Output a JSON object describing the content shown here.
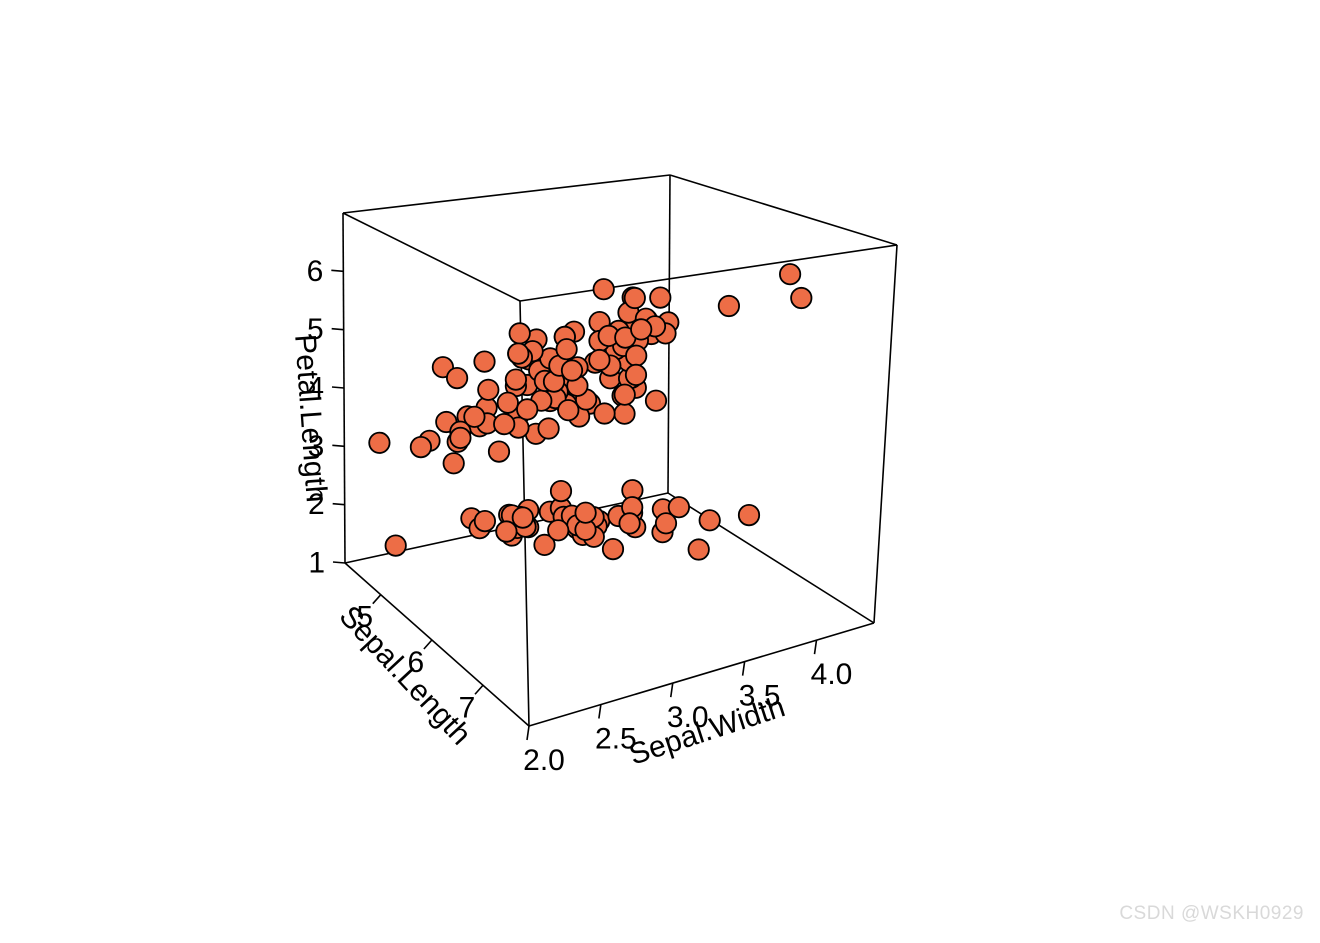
{
  "watermark": "CSDN @WSKH0929",
  "chart_data": {
    "type": "scatter",
    "subtype": "scatter3d",
    "title": "",
    "xlabel": "Sepal.Length",
    "ylabel": "Sepal.Width",
    "zlabel": "Petal.Length",
    "xlim": [
      4.3,
      7.9
    ],
    "ylim": [
      2.0,
      4.4
    ],
    "zlim": [
      1.0,
      7.0
    ],
    "xticks": {
      "values": [
        5,
        6,
        7
      ],
      "labels": [
        "5",
        "6",
        "7"
      ]
    },
    "yticks": {
      "values": [
        2.0,
        2.5,
        3.0,
        3.5,
        4.0
      ],
      "labels": [
        "2.0",
        "2.5",
        "3.0",
        "3.5",
        "4.0"
      ]
    },
    "zticks": {
      "values": [
        1,
        2,
        3,
        4,
        5,
        6
      ],
      "labels": [
        "1",
        "2",
        "3",
        "4",
        "5",
        "6"
      ]
    },
    "grid": false,
    "legend": false,
    "point_color": "#ED6D46",
    "point_border_color": "#000000",
    "points": [
      [
        5.1,
        3.5,
        1.4
      ],
      [
        4.9,
        3.0,
        1.4
      ],
      [
        4.7,
        3.2,
        1.3
      ],
      [
        4.6,
        3.1,
        1.5
      ],
      [
        5.0,
        3.6,
        1.4
      ],
      [
        5.4,
        3.9,
        1.7
      ],
      [
        4.6,
        3.4,
        1.4
      ],
      [
        5.0,
        3.4,
        1.5
      ],
      [
        4.4,
        2.9,
        1.4
      ],
      [
        4.9,
        3.1,
        1.5
      ],
      [
        5.4,
        3.7,
        1.5
      ],
      [
        4.8,
        3.4,
        1.6
      ],
      [
        4.8,
        3.0,
        1.4
      ],
      [
        4.3,
        3.0,
        1.1
      ],
      [
        5.8,
        4.0,
        1.2
      ],
      [
        5.7,
        4.4,
        1.5
      ],
      [
        5.4,
        3.9,
        1.3
      ],
      [
        5.1,
        3.5,
        1.4
      ],
      [
        5.7,
        3.8,
        1.7
      ],
      [
        5.1,
        3.8,
        1.5
      ],
      [
        5.4,
        3.4,
        1.7
      ],
      [
        5.1,
        3.7,
        1.5
      ],
      [
        4.6,
        3.6,
        1.0
      ],
      [
        5.1,
        3.3,
        1.7
      ],
      [
        4.8,
        3.4,
        1.9
      ],
      [
        5.0,
        3.0,
        1.6
      ],
      [
        5.0,
        3.4,
        1.6
      ],
      [
        5.2,
        3.5,
        1.5
      ],
      [
        5.2,
        3.4,
        1.4
      ],
      [
        4.7,
        3.2,
        1.6
      ],
      [
        4.8,
        3.1,
        1.6
      ],
      [
        5.4,
        3.4,
        1.5
      ],
      [
        5.2,
        4.1,
        1.5
      ],
      [
        5.5,
        4.2,
        1.4
      ],
      [
        4.9,
        3.1,
        1.5
      ],
      [
        5.0,
        3.2,
        1.2
      ],
      [
        5.5,
        3.5,
        1.3
      ],
      [
        4.9,
        3.6,
        1.4
      ],
      [
        4.4,
        3.0,
        1.3
      ],
      [
        5.1,
        3.4,
        1.5
      ],
      [
        5.0,
        3.5,
        1.3
      ],
      [
        4.5,
        2.3,
        1.3
      ],
      [
        4.4,
        3.2,
        1.3
      ],
      [
        5.0,
        3.5,
        1.6
      ],
      [
        5.1,
        3.8,
        1.9
      ],
      [
        4.8,
        3.0,
        1.4
      ],
      [
        5.1,
        3.8,
        1.6
      ],
      [
        4.6,
        3.2,
        1.4
      ],
      [
        5.3,
        3.7,
        1.5
      ],
      [
        5.0,
        3.3,
        1.4
      ],
      [
        7.0,
        3.2,
        4.7
      ],
      [
        6.4,
        3.2,
        4.5
      ],
      [
        6.9,
        3.1,
        4.9
      ],
      [
        5.5,
        2.3,
        4.0
      ],
      [
        6.5,
        2.8,
        4.6
      ],
      [
        5.7,
        2.8,
        4.5
      ],
      [
        6.3,
        3.3,
        4.7
      ],
      [
        4.9,
        2.4,
        3.3
      ],
      [
        6.6,
        2.9,
        4.6
      ],
      [
        5.2,
        2.7,
        3.9
      ],
      [
        5.0,
        2.0,
        3.5
      ],
      [
        5.9,
        3.0,
        4.2
      ],
      [
        6.0,
        2.2,
        4.0
      ],
      [
        6.1,
        2.9,
        4.7
      ],
      [
        5.6,
        2.9,
        3.6
      ],
      [
        6.7,
        3.1,
        4.4
      ],
      [
        5.6,
        3.0,
        4.5
      ],
      [
        5.8,
        2.7,
        4.1
      ],
      [
        6.2,
        2.2,
        4.5
      ],
      [
        5.6,
        2.5,
        3.9
      ],
      [
        5.9,
        3.2,
        4.8
      ],
      [
        6.1,
        2.8,
        4.0
      ],
      [
        6.3,
        2.5,
        4.9
      ],
      [
        6.1,
        2.8,
        4.7
      ],
      [
        6.4,
        2.9,
        4.3
      ],
      [
        6.6,
        3.0,
        4.4
      ],
      [
        6.8,
        2.8,
        4.8
      ],
      [
        6.7,
        3.0,
        5.0
      ],
      [
        6.0,
        2.9,
        4.5
      ],
      [
        5.7,
        2.6,
        3.5
      ],
      [
        5.5,
        2.4,
        3.8
      ],
      [
        5.5,
        2.4,
        3.7
      ],
      [
        5.8,
        2.7,
        3.9
      ],
      [
        6.0,
        2.7,
        5.1
      ],
      [
        5.4,
        3.0,
        4.5
      ],
      [
        6.0,
        3.4,
        4.5
      ],
      [
        6.7,
        3.1,
        4.7
      ],
      [
        6.3,
        2.3,
        4.4
      ],
      [
        5.6,
        3.0,
        4.1
      ],
      [
        5.5,
        2.5,
        4.0
      ],
      [
        5.5,
        2.6,
        4.4
      ],
      [
        6.1,
        3.0,
        4.6
      ],
      [
        5.8,
        2.6,
        4.0
      ],
      [
        5.0,
        2.3,
        3.3
      ],
      [
        5.6,
        2.7,
        4.2
      ],
      [
        5.7,
        3.0,
        4.2
      ],
      [
        5.7,
        2.9,
        4.2
      ],
      [
        6.2,
        2.9,
        4.3
      ],
      [
        5.1,
        2.5,
        3.0
      ],
      [
        5.7,
        2.8,
        4.1
      ],
      [
        6.3,
        3.3,
        6.0
      ],
      [
        5.8,
        2.7,
        5.1
      ],
      [
        7.1,
        3.0,
        5.9
      ],
      [
        6.3,
        2.9,
        5.6
      ],
      [
        6.5,
        3.0,
        5.8
      ],
      [
        7.6,
        3.0,
        6.6
      ],
      [
        4.9,
        2.5,
        4.5
      ],
      [
        7.3,
        2.9,
        6.3
      ],
      [
        6.7,
        2.5,
        5.8
      ],
      [
        7.2,
        3.6,
        6.1
      ],
      [
        6.5,
        3.2,
        5.1
      ],
      [
        6.4,
        2.7,
        5.3
      ],
      [
        6.8,
        3.0,
        5.5
      ],
      [
        5.7,
        2.5,
        5.0
      ],
      [
        5.8,
        2.8,
        5.1
      ],
      [
        6.4,
        3.2,
        5.3
      ],
      [
        6.5,
        3.0,
        5.5
      ],
      [
        7.7,
        3.8,
        6.7
      ],
      [
        7.7,
        2.6,
        6.9
      ],
      [
        6.0,
        2.2,
        5.0
      ],
      [
        6.9,
        3.2,
        5.7
      ],
      [
        5.6,
        2.8,
        4.9
      ],
      [
        7.7,
        2.8,
        6.7
      ],
      [
        6.3,
        2.7,
        4.9
      ],
      [
        6.7,
        3.3,
        5.7
      ],
      [
        7.2,
        3.2,
        6.0
      ],
      [
        6.2,
        2.8,
        4.8
      ],
      [
        6.1,
        3.0,
        4.9
      ],
      [
        6.4,
        2.8,
        5.6
      ],
      [
        7.2,
        3.0,
        5.8
      ],
      [
        7.4,
        2.8,
        6.1
      ],
      [
        7.9,
        3.8,
        6.4
      ],
      [
        6.4,
        2.8,
        5.6
      ],
      [
        6.3,
        2.8,
        5.1
      ],
      [
        6.1,
        2.6,
        5.6
      ],
      [
        7.7,
        3.0,
        6.1
      ],
      [
        6.3,
        3.4,
        5.6
      ],
      [
        6.4,
        3.1,
        5.5
      ],
      [
        6.0,
        3.0,
        4.8
      ],
      [
        6.9,
        3.1,
        5.4
      ],
      [
        6.7,
        3.1,
        5.6
      ],
      [
        6.9,
        3.1,
        5.1
      ],
      [
        5.8,
        2.7,
        5.1
      ],
      [
        6.8,
        3.2,
        5.9
      ],
      [
        6.7,
        3.3,
        5.7
      ],
      [
        6.7,
        3.0,
        5.2
      ],
      [
        6.3,
        2.5,
        5.0
      ],
      [
        6.5,
        3.0,
        5.2
      ],
      [
        6.2,
        3.4,
        5.4
      ],
      [
        5.9,
        3.0,
        5.1
      ]
    ]
  }
}
